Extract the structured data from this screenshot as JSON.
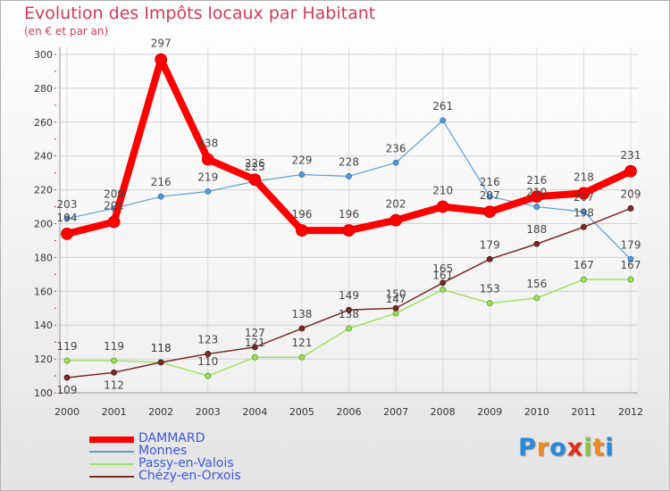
{
  "chart_data": {
    "type": "line",
    "title": "Evolution des Impôts locaux par Habitant",
    "subtitle": "(en € et par an)",
    "x": [
      "2000",
      "2001",
      "2002",
      "2003",
      "2004",
      "2005",
      "2006",
      "2007",
      "2008",
      "2009",
      "2010",
      "2011",
      "2012"
    ],
    "ylim": [
      100,
      300
    ],
    "yticks": [
      100,
      120,
      140,
      160,
      180,
      200,
      220,
      240,
      260,
      280,
      300
    ],
    "grid": true,
    "legend_position": "bottom-left",
    "series": [
      {
        "name": "DAMMARD",
        "color": "#ff0000",
        "values": [
          194,
          201,
          297,
          238,
          226,
          196,
          196,
          202,
          210,
          207,
          216,
          218,
          231
        ]
      },
      {
        "name": "Monnes",
        "color": "#5b9bd5",
        "values": [
          203,
          209,
          216,
          219,
          225,
          229,
          228,
          236,
          261,
          216,
          210,
          207,
          179
        ]
      },
      {
        "name": "Passy-en-Valois",
        "color": "#a0e060",
        "values": [
          119,
          119,
          118,
          110,
          121,
          121,
          138,
          147,
          161,
          153,
          156,
          167,
          167
        ]
      },
      {
        "name": "Chézy-en-Orxois",
        "color": "#7a2a2a",
        "values": [
          109,
          112,
          118,
          123,
          127,
          138,
          149,
          150,
          165,
          179,
          188,
          198,
          209
        ]
      }
    ]
  },
  "logo": {
    "text": "Proxiti"
  }
}
